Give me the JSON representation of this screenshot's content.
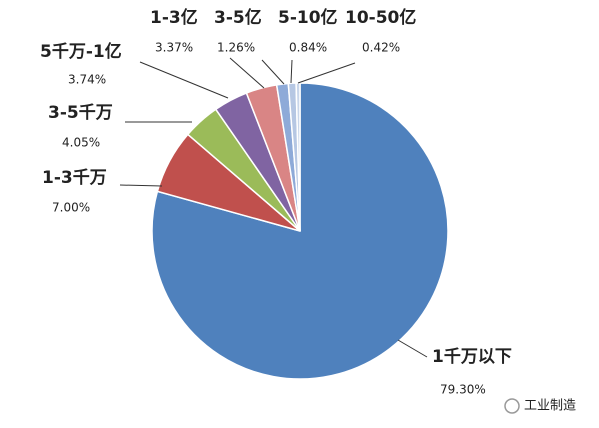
{
  "chart_data": {
    "type": "pie",
    "categories": [
      "1千万以下",
      "1-3千万",
      "3-5千万",
      "5千万-1亿",
      "1-3亿",
      "3-5亿",
      "5-10亿",
      "10-50亿"
    ],
    "values": [
      79.3,
      7,
      4.05,
      3.74,
      3.37,
      1.26,
      0.84,
      0.42
    ],
    "value_labels": [
      "79.30%",
      "7.00%",
      "4.05%",
      "3.74%",
      "3.37%",
      "1.26%",
      "0.84%",
      "0.42%"
    ],
    "colors": [
      "#4f81bd",
      "#c0504d",
      "#9bbb59",
      "#8064a2",
      "#d98585",
      "#8eaad8",
      "#b6c7e3",
      "#c9d6ea"
    ]
  },
  "watermark": "工业制造"
}
